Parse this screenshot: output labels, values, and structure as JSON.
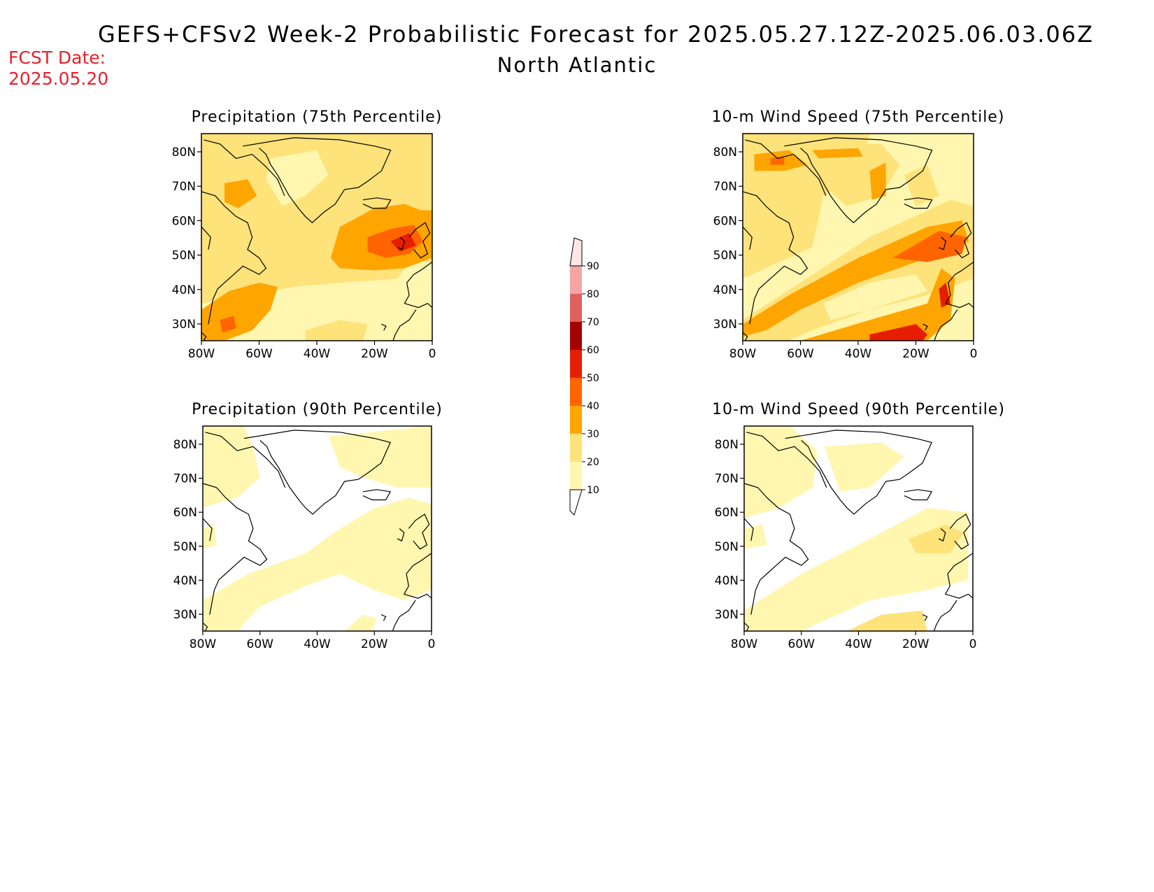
{
  "header": {
    "title": "GEFS+CFSv2 Week-2 Probabilistic Forecast for 2025.05.27.12Z-2025.06.03.06Z",
    "region": "North Atlantic",
    "fcst_label": "FCST Date:",
    "fcst_date": "2025.05.20"
  },
  "colorbar": {
    "levels": [
      10,
      20,
      30,
      40,
      50,
      60,
      70,
      80,
      90
    ],
    "labels": [
      "10",
      "20",
      "30",
      "40",
      "50",
      "60",
      "70",
      "80",
      "90"
    ],
    "colors": [
      "#fff7b0",
      "#fee27a",
      "#ffa500",
      "#ff6400",
      "#e61e00",
      "#a50000",
      "#e06060",
      "#f4a5a5",
      "#ffe6e6"
    ]
  },
  "axes": {
    "lat_labels": [
      "80N",
      "70N",
      "60N",
      "50N",
      "40N",
      "30N"
    ],
    "lon_labels": [
      "80W",
      "60W",
      "40W",
      "20W",
      "0"
    ]
  },
  "panels": [
    {
      "id": "precip75",
      "title": "Precipitation (75th Percentile)"
    },
    {
      "id": "wind75",
      "title": "10-m Wind Speed (75th Percentile)"
    },
    {
      "id": "precip90",
      "title": "Precipitation (90th Percentile)"
    },
    {
      "id": "wind90",
      "title": "10-m Wind Speed (90th Percentile)"
    }
  ]
}
